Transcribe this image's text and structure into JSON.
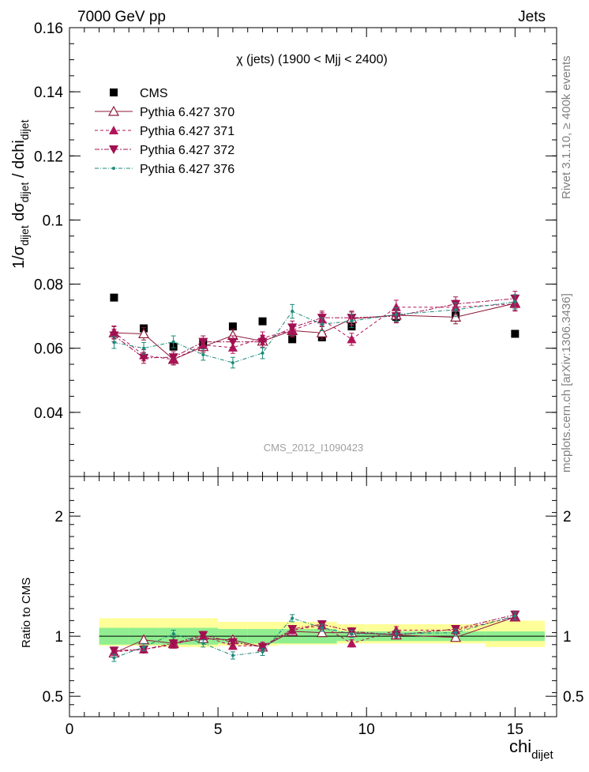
{
  "header": {
    "left": "7000 GeV pp",
    "right": "Jets"
  },
  "side_labels": {
    "rivet": "Rivet 3.1.10, ≥ 400k events",
    "mcplots": "mcplots.cern.ch [arXiv:1306.3436]"
  },
  "watermark": "CMS_2012_I1090423",
  "colors": {
    "cms": "#000000",
    "p370": "#8b1a3a",
    "p371": "#b0145a",
    "p372": "#a01050",
    "p376": "#1a8a7a",
    "band_green": "#90ee90",
    "band_yellow": "#ffff99"
  },
  "chart_data": [
    {
      "type": "line",
      "title": "χ (jets) (1900 < Mjj < 2400)",
      "ylabel": "1/σdijet dσdijet / dchidijet",
      "xlabel": "chidijet",
      "xlim": [
        0,
        16.4
      ],
      "ylim": [
        0.02,
        0.16
      ],
      "yticks": [
        "0.04",
        "0.06",
        "0.08",
        "0.1",
        "0.12",
        "0.14",
        "0.16"
      ],
      "xticks": [
        "0",
        "5",
        "10",
        "15"
      ],
      "legend_position": "top-left",
      "x": [
        1.5,
        2.5,
        3.5,
        4.5,
        5.5,
        6.5,
        7.5,
        8.5,
        9.5,
        11,
        13,
        15
      ],
      "series": [
        {
          "name": "CMS",
          "style": "square",
          "values": [
            0.0758,
            0.0662,
            0.0605,
            0.0617,
            0.0668,
            0.0684,
            0.0628,
            0.0634,
            0.0668,
            0.0698,
            0.0702,
            0.0645
          ]
        },
        {
          "name": "Pythia 6.427 370",
          "style": "triangle-open-solid",
          "values": [
            0.0648,
            0.0645,
            0.0565,
            0.0605,
            0.064,
            0.0622,
            0.0655,
            0.0648,
            0.0692,
            0.0703,
            0.0697,
            0.074
          ]
        },
        {
          "name": "Pythia 6.427 371",
          "style": "triangle-dashed",
          "values": [
            0.065,
            0.0578,
            0.0565,
            0.061,
            0.0602,
            0.0632,
            0.0656,
            0.069,
            0.0628,
            0.0728,
            0.0728,
            0.0738
          ]
        },
        {
          "name": "Pythia 6.427 372",
          "style": "triangle-down-dashdot",
          "values": [
            0.064,
            0.057,
            0.0572,
            0.062,
            0.062,
            0.062,
            0.0665,
            0.0695,
            0.0695,
            0.07,
            0.0738,
            0.0755
          ]
        },
        {
          "name": "Pythia 6.427 376",
          "style": "dot-dashdot",
          "values": [
            0.0618,
            0.06,
            0.062,
            0.058,
            0.0555,
            0.0585,
            0.0715,
            0.0675,
            0.0685,
            0.0705,
            0.072,
            0.0745
          ]
        }
      ]
    },
    {
      "type": "line",
      "ylabel": "Ratio to CMS",
      "xlabel": "chidijet",
      "xlim": [
        0,
        16.4
      ],
      "ylim": [
        0.33,
        2.33
      ],
      "yticks": [
        "0.5",
        "1",
        "2"
      ],
      "x": [
        1.5,
        2.5,
        3.5,
        4.5,
        5.5,
        6.5,
        7.5,
        8.5,
        9.5,
        11,
        13,
        15
      ],
      "bands": {
        "edges": [
          1,
          2,
          3,
          4,
          5,
          6,
          7,
          8,
          9,
          10,
          12,
          14,
          16
        ],
        "green": [
          [
            0.93,
            1.07
          ],
          [
            0.93,
            1.07
          ],
          [
            0.93,
            1.07
          ],
          [
            0.93,
            1.07
          ],
          [
            0.94,
            1.06
          ],
          [
            0.94,
            1.06
          ],
          [
            0.94,
            1.06
          ],
          [
            0.94,
            1.06
          ],
          [
            0.96,
            1.04
          ],
          [
            0.96,
            1.04
          ],
          [
            0.96,
            1.04
          ],
          [
            0.96,
            1.04
          ]
        ],
        "yellow": [
          [
            0.92,
            1.15
          ],
          [
            0.92,
            1.15
          ],
          [
            0.91,
            1.15
          ],
          [
            0.91,
            1.15
          ],
          [
            0.92,
            1.12
          ],
          [
            0.92,
            1.12
          ],
          [
            0.93,
            1.12
          ],
          [
            0.93,
            1.12
          ],
          [
            0.94,
            1.1
          ],
          [
            0.94,
            1.1
          ],
          [
            0.94,
            1.1
          ],
          [
            0.91,
            1.13
          ]
        ]
      },
      "series": [
        {
          "name": "Pythia 6.427 370",
          "values": [
            0.86,
            0.97,
            0.94,
            0.98,
            0.97,
            0.91,
            1.04,
            1.03,
            1.03,
            1.01,
            0.99,
            1.16
          ]
        },
        {
          "name": "Pythia 6.427 371",
          "values": [
            0.87,
            0.89,
            0.93,
            1.0,
            0.92,
            0.92,
            1.05,
            1.09,
            0.94,
            1.05,
            1.05,
            1.16
          ]
        },
        {
          "name": "Pythia 6.427 372",
          "values": [
            0.88,
            0.89,
            0.94,
            1.01,
            0.95,
            0.91,
            1.06,
            1.1,
            1.04,
            1.01,
            1.06,
            1.18
          ]
        },
        {
          "name": "Pythia 6.427 376",
          "values": [
            0.82,
            0.91,
            1.02,
            0.94,
            0.84,
            0.87,
            1.15,
            1.07,
            1.02,
            1.02,
            1.03,
            1.17
          ]
        }
      ]
    }
  ]
}
